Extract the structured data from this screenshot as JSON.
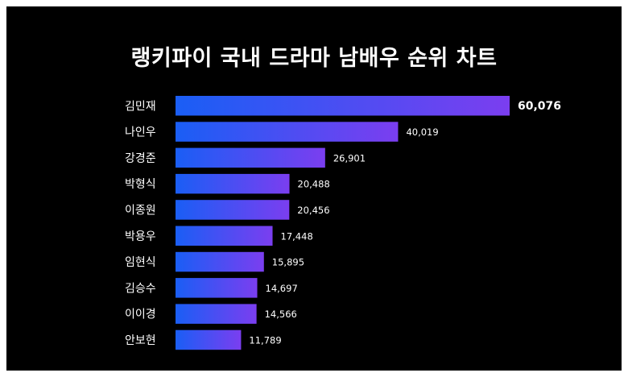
{
  "title": "랭키파이 국내 드라마 남배우 순위 차트",
  "colors": {
    "background": "#000000",
    "bar_start": "#1a5ef5",
    "bar_end": "#7b3ef0",
    "text": "#ffffff"
  },
  "chart_data": {
    "type": "bar",
    "orientation": "horizontal",
    "title": "랭키파이 국내 드라마 남배우 순위 차트",
    "categories": [
      "김민재",
      "나인우",
      "강경준",
      "박형식",
      "이종원",
      "박용우",
      "임현식",
      "김승수",
      "이이경",
      "안보현"
    ],
    "values": [
      60076,
      40019,
      26901,
      20488,
      20456,
      17448,
      15895,
      14697,
      14566,
      11789
    ],
    "value_labels": [
      "60,076",
      "40,019",
      "26,901",
      "20,488",
      "20,456",
      "17,448",
      "15,895",
      "14,697",
      "14,566",
      "11,789"
    ],
    "xlim": [
      0,
      60076
    ],
    "grid": false,
    "legend": "none"
  }
}
